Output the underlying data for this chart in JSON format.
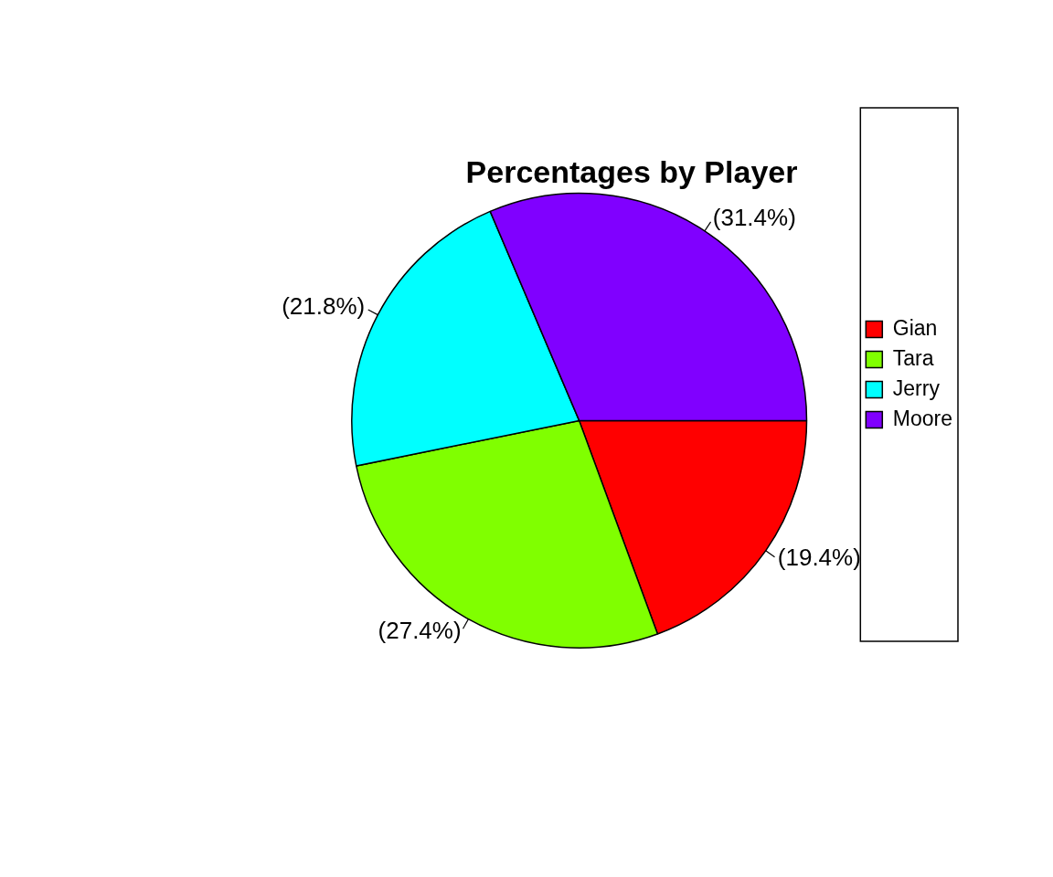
{
  "chart_data": {
    "type": "pie",
    "title": "Percentages by Player",
    "categories": [
      "Gian",
      "Tara",
      "Jerry",
      "Moore"
    ],
    "values": [
      19.4,
      27.4,
      21.8,
      31.4
    ],
    "colors": [
      "#ff0000",
      "#80ff00",
      "#00ffff",
      "#8000ff"
    ],
    "value_labels": [
      "(19.4%)",
      "(27.4%)",
      "(21.8%)",
      "(31.4%)"
    ],
    "legend": "right"
  }
}
